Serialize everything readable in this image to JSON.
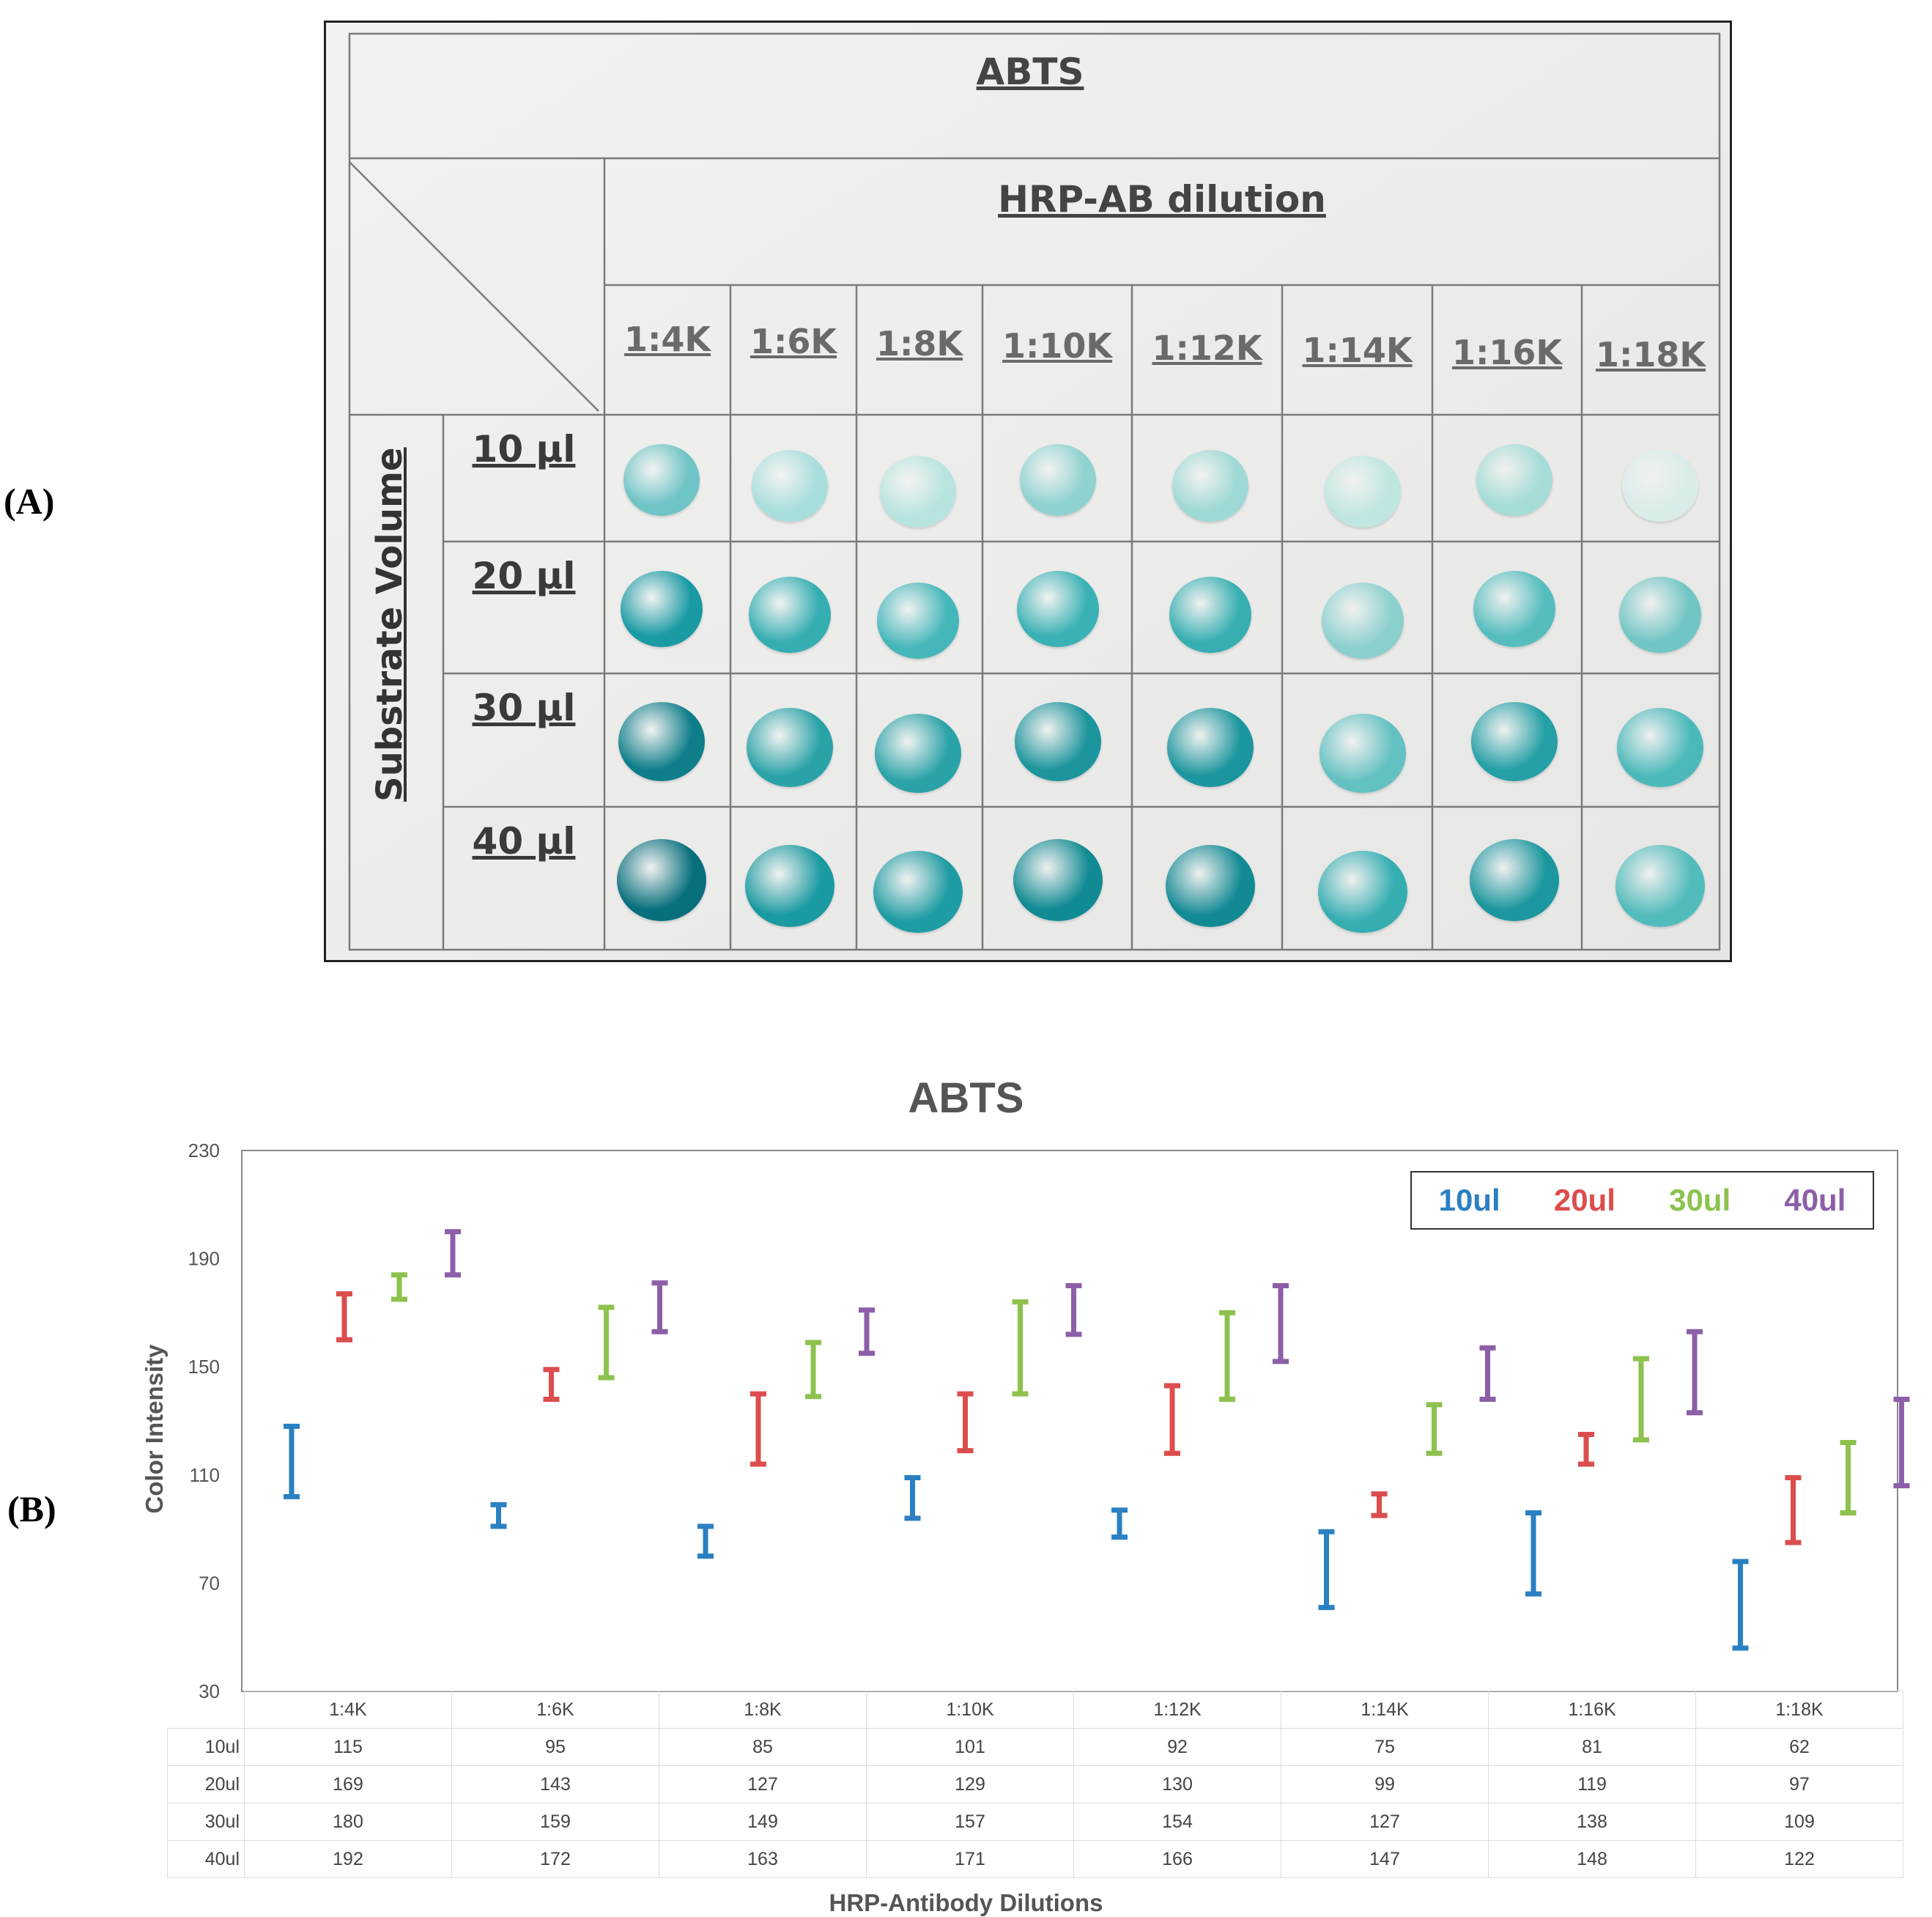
{
  "panel_a": {
    "label": "(A)",
    "title": "ABTS",
    "column_header": "HRP-AB dilution",
    "row_header": "Substrate Volume",
    "dilutions": [
      "1:4K",
      "1:6K",
      "1:8K",
      "1:10K",
      "1:12K",
      "1:14K",
      "1:16K",
      "1:18K"
    ],
    "volumes": [
      "10 µl",
      "20 µl",
      "30 µl",
      "40 µl"
    ],
    "spot_colors": [
      [
        "#6fc4c6",
        "#a8dedc",
        "#b8e4e0",
        "#8fd2d0",
        "#9fd9d5",
        "#bfe6e1",
        "#a5dcd7",
        "#d9ecea"
      ],
      [
        "#1a9ba4",
        "#35aeb2",
        "#45b7ba",
        "#3ab2b5",
        "#37afb2",
        "#8cd0ce",
        "#56bdbe",
        "#70c6c4"
      ],
      [
        "#0e7e8a",
        "#2aa3a8",
        "#2aa3a8",
        "#1c959d",
        "#1c969e",
        "#63c1c1",
        "#24a0a6",
        "#4bb9ba"
      ],
      [
        "#08707d",
        "#1a9aa1",
        "#1e9ca3",
        "#108a93",
        "#128a94",
        "#35aeb2",
        "#1c979f",
        "#52bcbc"
      ]
    ]
  },
  "panel_b": {
    "label": "(B)"
  },
  "chart_data": {
    "type": "errorbar",
    "title": "ABTS",
    "xlabel": "HRP-Antibody Dilutions",
    "ylabel": "Color Intensity",
    "ylim": [
      30,
      230
    ],
    "yticks": [
      "230",
      "190",
      "150",
      "110",
      "70",
      "30"
    ],
    "ytick_values": [
      230,
      190,
      150,
      110,
      70,
      30
    ],
    "grid": false,
    "legend": "top-right",
    "categories": [
      "1:4K",
      "1:6K",
      "1:8K",
      "1:10K",
      "1:12K",
      "1:14K",
      "1:16K",
      "1:18K"
    ],
    "series": [
      {
        "name": "10ul",
        "color": "#2a80c2",
        "values": [
          115,
          95,
          85,
          101,
          92,
          75,
          81,
          62
        ],
        "low": [
          102,
          91,
          80,
          94,
          87,
          61,
          66,
          46
        ],
        "high": [
          128,
          99,
          91,
          109,
          97,
          89,
          96,
          78
        ]
      },
      {
        "name": "20ul",
        "color": "#dc4d4d",
        "values": [
          169,
          143,
          127,
          129,
          130,
          99,
          119,
          97
        ],
        "low": [
          160,
          138,
          114,
          119,
          118,
          95,
          114,
          85
        ],
        "high": [
          177,
          149,
          140,
          140,
          143,
          103,
          125,
          109
        ]
      },
      {
        "name": "30ul",
        "color": "#8dc24e",
        "values": [
          180,
          159,
          149,
          157,
          154,
          127,
          138,
          109
        ],
        "low": [
          175,
          146,
          139,
          140,
          138,
          118,
          123,
          96
        ],
        "high": [
          184,
          172,
          159,
          174,
          170,
          136,
          153,
          122
        ]
      },
      {
        "name": "40ul",
        "color": "#8c5fa8",
        "values": [
          192,
          172,
          163,
          171,
          166,
          147,
          148,
          122
        ],
        "low": [
          184,
          163,
          155,
          162,
          152,
          138,
          133,
          106
        ],
        "high": [
          200,
          181,
          171,
          180,
          180,
          157,
          163,
          138
        ]
      }
    ]
  }
}
